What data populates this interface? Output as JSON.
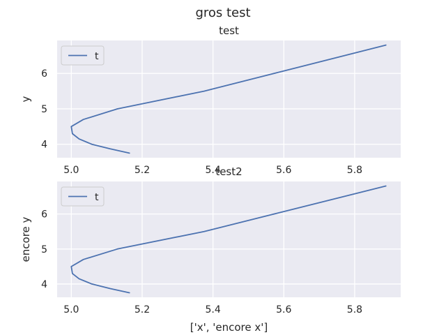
{
  "suptitle": "gros test",
  "colors": {
    "axes_bg": "#EAEAF2",
    "grid": "#FFFFFF",
    "line": "#4C72B0",
    "text": "#262626"
  },
  "chart_data": [
    {
      "type": "line",
      "title": "test",
      "xlabel": "",
      "ylabel": "y",
      "xlim": [
        4.96,
        5.93
      ],
      "ylim": [
        3.62,
        6.93
      ],
      "xticks": [
        5.0,
        5.2,
        5.4,
        5.6,
        5.8
      ],
      "xtick_labels": [
        "5.0",
        "5.2",
        "5.4",
        "5.6",
        "5.8"
      ],
      "yticks": [
        4,
        5,
        6
      ],
      "ytick_labels": [
        "4",
        "5",
        "6"
      ],
      "grid": true,
      "legend_position": "top-left",
      "series": [
        {
          "name": "t",
          "x": [
            5.164,
            5.11,
            5.058,
            5.022,
            5.003,
            5.0,
            5.034,
            5.13,
            5.375,
            5.888
          ],
          "y": [
            3.75,
            3.87,
            4.0,
            4.15,
            4.3,
            4.5,
            4.7,
            5.0,
            5.5,
            6.8
          ]
        }
      ]
    },
    {
      "type": "line",
      "title": "test2",
      "xlabel": "['x', 'encore x']",
      "ylabel": "encore y",
      "xlim": [
        4.96,
        5.93
      ],
      "ylim": [
        3.62,
        6.93
      ],
      "xticks": [
        5.0,
        5.2,
        5.4,
        5.6,
        5.8
      ],
      "xtick_labels": [
        "5.0",
        "5.2",
        "5.4",
        "5.6",
        "5.8"
      ],
      "yticks": [
        4,
        5,
        6
      ],
      "ytick_labels": [
        "4",
        "5",
        "6"
      ],
      "grid": true,
      "legend_position": "top-left",
      "series": [
        {
          "name": "t",
          "x": [
            5.164,
            5.11,
            5.058,
            5.022,
            5.003,
            5.0,
            5.034,
            5.13,
            5.375,
            5.888
          ],
          "y": [
            3.75,
            3.87,
            4.0,
            4.15,
            4.3,
            4.5,
            4.7,
            5.0,
            5.5,
            6.8
          ]
        }
      ]
    }
  ]
}
